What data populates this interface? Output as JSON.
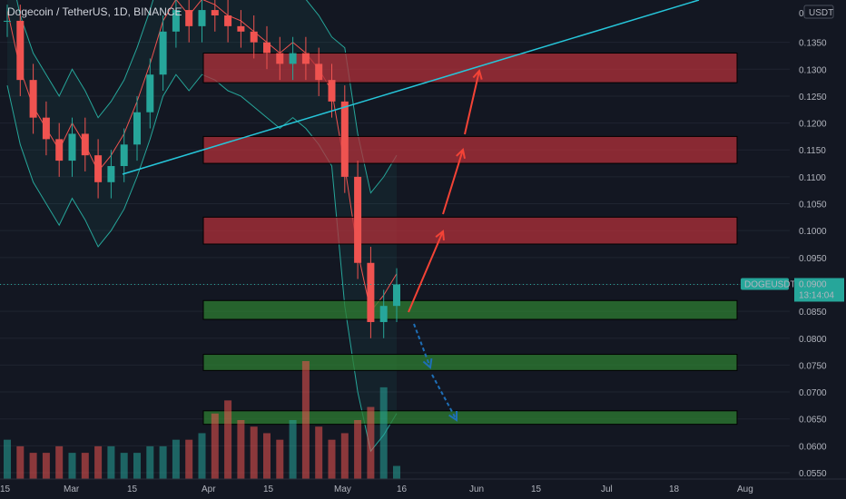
{
  "header": {
    "title": "Dogecoin / TetherUS, 1D, BINANCE"
  },
  "price_axis": {
    "currency": "USDT",
    "ticks": [
      "0.1350",
      "0.1300",
      "0.1250",
      "0.1200",
      "0.1150",
      "0.1100",
      "0.1050",
      "0.1000",
      "0.0950",
      "0.0900",
      "0.0850",
      "0.0800",
      "0.0750",
      "0.0700",
      "0.0650",
      "0.0600",
      "0.0550"
    ],
    "top_value": "0"
  },
  "time_axis": {
    "ticks": [
      "15",
      "Mar",
      "15",
      "Apr",
      "15",
      "May",
      "16",
      "Jun",
      "15",
      "Jul",
      "18",
      "Aug"
    ]
  },
  "last_price": {
    "symbol": "DOGEUSDT",
    "price": "0.0900",
    "countdown": "13:14:04"
  },
  "colors": {
    "background": "#131722",
    "up": "#26a69a",
    "down": "#ef5350",
    "resistance_zone": "#b2303a",
    "support_zone": "#2e7d32",
    "trendline": "#26c6da",
    "bullish_arrow": "#f44336",
    "bearish_arrow": "#1e6fb8",
    "bb_upper": "#26a69a",
    "bb_basis": "#ef5350"
  },
  "chart_data": {
    "type": "candlestick",
    "symbol": "DOGEUSDT",
    "exchange": "BINANCE",
    "interval": "1D",
    "ylim": [
      0.055,
      0.14
    ],
    "x": [
      "Feb 15",
      "Feb 18",
      "Feb 21",
      "Feb 24",
      "Feb 27",
      "Mar 1",
      "Mar 4",
      "Mar 7",
      "Mar 10",
      "Mar 13",
      "Mar 16",
      "Mar 19",
      "Mar 22",
      "Mar 25",
      "Mar 28",
      "Apr 1",
      "Apr 4",
      "Apr 7",
      "Apr 10",
      "Apr 13",
      "Apr 16",
      "Apr 19",
      "Apr 22",
      "Apr 25",
      "Apr 28",
      "May 1",
      "May 4",
      "May 7",
      "May 10",
      "May 13",
      "May 16"
    ],
    "close": [
      0.139,
      0.128,
      0.121,
      0.117,
      0.113,
      0.118,
      0.114,
      0.109,
      0.112,
      0.116,
      0.122,
      0.129,
      0.137,
      0.141,
      0.138,
      0.141,
      0.14,
      0.138,
      0.137,
      0.135,
      0.133,
      0.131,
      0.133,
      0.131,
      0.128,
      0.124,
      0.11,
      0.094,
      0.083,
      0.086,
      0.09
    ],
    "volume": [
      6,
      5,
      4,
      4,
      5,
      4,
      4,
      5,
      5,
      4,
      4,
      5,
      5,
      6,
      6,
      7,
      10,
      12,
      9,
      8,
      7,
      6,
      9,
      18,
      8,
      6,
      7,
      9,
      11,
      14,
      2
    ],
    "support_zones": [
      [
        0.0835,
        0.087
      ],
      [
        0.074,
        0.077
      ],
      [
        0.064,
        0.0665
      ]
    ],
    "resistance_zones": [
      [
        0.1275,
        0.133
      ],
      [
        0.1125,
        0.1175
      ],
      [
        0.0975,
        0.1025
      ]
    ]
  }
}
